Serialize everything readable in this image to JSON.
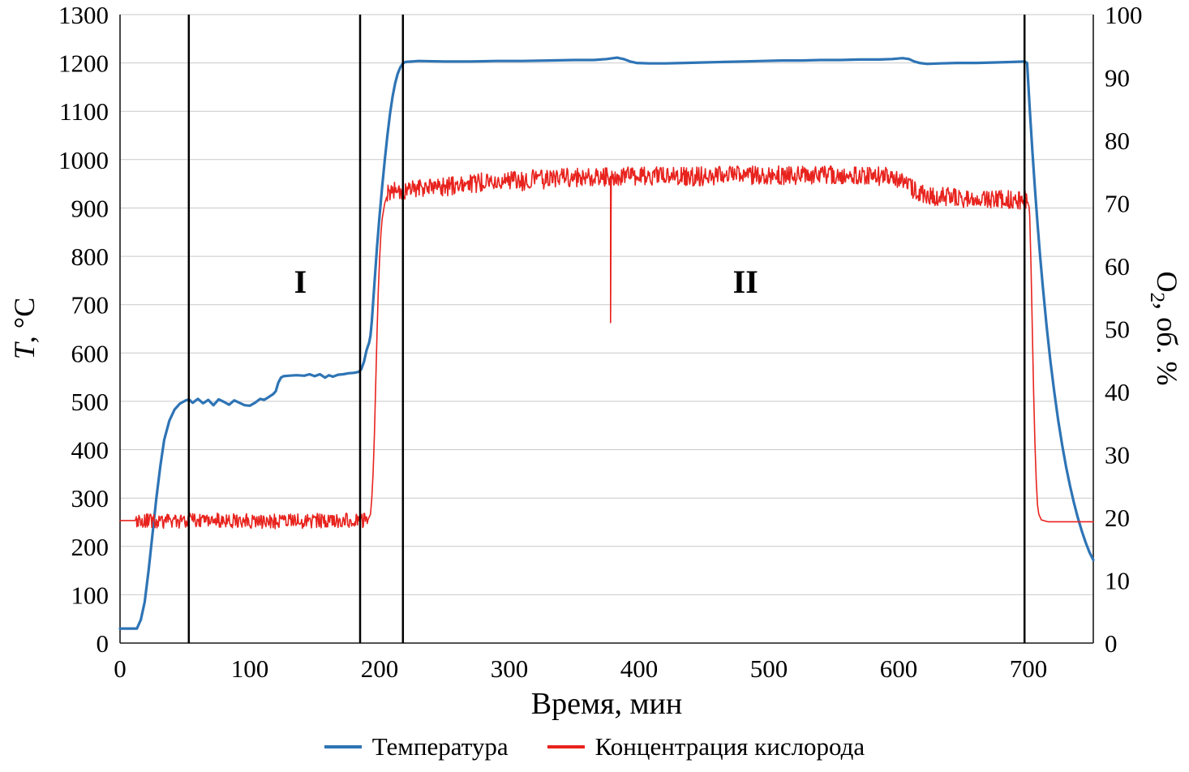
{
  "chart_data": {
    "type": "line",
    "title": "",
    "xlabel": "Время, мин",
    "ylabel_left": {
      "italic": "T",
      "rest": ", °C"
    },
    "ylabel_right": {
      "pre": "O",
      "sub": "2",
      "post": ", об. %"
    },
    "xlim": [
      0,
      750
    ],
    "ylim_left": [
      0,
      1300
    ],
    "ylim_right": [
      0,
      100
    ],
    "x_ticks": [
      0,
      100,
      200,
      300,
      400,
      500,
      600,
      700
    ],
    "y_ticks_left": [
      0,
      100,
      200,
      300,
      400,
      500,
      600,
      700,
      800,
      900,
      1000,
      1100,
      1200,
      1300
    ],
    "y_ticks_right": [
      0,
      10,
      20,
      30,
      40,
      50,
      60,
      70,
      80,
      90,
      100
    ],
    "grid": "horizontal",
    "legend_position": "bottom",
    "colors": {
      "grid": "#c9c9c9",
      "axis": "#1a1a1a",
      "divider": "#000000"
    },
    "stage_divider_lines_x": [
      53,
      185,
      218,
      697
    ],
    "region_labels": [
      {
        "text": "I",
        "x": 139,
        "y": 725
      },
      {
        "text": "II",
        "x": 482,
        "y": 725
      }
    ],
    "series": [
      {
        "id": "temperature-line",
        "name": "Температура",
        "axis": "left",
        "color": "#2e74b5",
        "width": 3.2,
        "points": [
          [
            0,
            30
          ],
          [
            13,
            30
          ],
          [
            16,
            48
          ],
          [
            19,
            85
          ],
          [
            22,
            150
          ],
          [
            25,
            225
          ],
          [
            28,
            300
          ],
          [
            31,
            365
          ],
          [
            34,
            420
          ],
          [
            38,
            460
          ],
          [
            42,
            483
          ],
          [
            46,
            495
          ],
          [
            50,
            501
          ],
          [
            53,
            504
          ],
          [
            56,
            497
          ],
          [
            60,
            505
          ],
          [
            64,
            496
          ],
          [
            68,
            503
          ],
          [
            72,
            492
          ],
          [
            76,
            504
          ],
          [
            80,
            499
          ],
          [
            84,
            493
          ],
          [
            88,
            502
          ],
          [
            92,
            497
          ],
          [
            96,
            492
          ],
          [
            100,
            491
          ],
          [
            104,
            497
          ],
          [
            108,
            505
          ],
          [
            111,
            503
          ],
          [
            114,
            508
          ],
          [
            118,
            515
          ],
          [
            120,
            521
          ],
          [
            122,
            539
          ],
          [
            124,
            549
          ],
          [
            126,
            552
          ],
          [
            130,
            553
          ],
          [
            136,
            554
          ],
          [
            142,
            553
          ],
          [
            146,
            556
          ],
          [
            150,
            552
          ],
          [
            154,
            556
          ],
          [
            158,
            549
          ],
          [
            161,
            554
          ],
          [
            164,
            551
          ],
          [
            168,
            555
          ],
          [
            172,
            556
          ],
          [
            176,
            558
          ],
          [
            180,
            559
          ],
          [
            184,
            561
          ],
          [
            186,
            567
          ],
          [
            188,
            582
          ],
          [
            190,
            606
          ],
          [
            192,
            622
          ],
          [
            193,
            636
          ],
          [
            194,
            665
          ],
          [
            196,
            742
          ],
          [
            198,
            818
          ],
          [
            200,
            884
          ],
          [
            202,
            944
          ],
          [
            204,
            999
          ],
          [
            206,
            1049
          ],
          [
            208,
            1094
          ],
          [
            210,
            1130
          ],
          [
            212,
            1158
          ],
          [
            214,
            1178
          ],
          [
            216,
            1191
          ],
          [
            218,
            1199
          ],
          [
            220,
            1202
          ],
          [
            230,
            1204
          ],
          [
            250,
            1203
          ],
          [
            270,
            1203
          ],
          [
            290,
            1204
          ],
          [
            310,
            1204
          ],
          [
            330,
            1205
          ],
          [
            350,
            1206
          ],
          [
            365,
            1206
          ],
          [
            375,
            1208
          ],
          [
            383,
            1211
          ],
          [
            388,
            1208
          ],
          [
            393,
            1203
          ],
          [
            398,
            1200
          ],
          [
            408,
            1199
          ],
          [
            420,
            1199
          ],
          [
            435,
            1200
          ],
          [
            450,
            1201
          ],
          [
            465,
            1202
          ],
          [
            480,
            1203
          ],
          [
            495,
            1204
          ],
          [
            510,
            1205
          ],
          [
            525,
            1205
          ],
          [
            540,
            1206
          ],
          [
            555,
            1206
          ],
          [
            570,
            1207
          ],
          [
            585,
            1207
          ],
          [
            595,
            1208
          ],
          [
            603,
            1210
          ],
          [
            608,
            1208
          ],
          [
            612,
            1203
          ],
          [
            616,
            1200
          ],
          [
            622,
            1198
          ],
          [
            632,
            1199
          ],
          [
            645,
            1200
          ],
          [
            660,
            1200
          ],
          [
            675,
            1201
          ],
          [
            688,
            1202
          ],
          [
            697,
            1203
          ],
          [
            699,
            1200
          ],
          [
            701,
            1106
          ],
          [
            703,
            1020
          ],
          [
            705,
            941
          ],
          [
            707,
            868
          ],
          [
            709,
            801
          ],
          [
            711,
            740
          ],
          [
            714,
            656
          ],
          [
            717,
            582
          ],
          [
            720,
            518
          ],
          [
            723,
            460
          ],
          [
            726,
            410
          ],
          [
            729,
            365
          ],
          [
            732,
            326
          ],
          [
            735,
            291
          ],
          [
            738,
            260
          ],
          [
            741,
            233
          ],
          [
            744,
            209
          ],
          [
            747,
            188
          ],
          [
            750,
            172
          ]
        ]
      },
      {
        "id": "oxygen-line",
        "name": "Концентрация кислорода",
        "axis": "right",
        "color": "#e8231e",
        "width": 1.6,
        "step": 0.5,
        "noise": [
          {
            "x0": 12,
            "x1": 191,
            "amp": 1.2
          },
          {
            "x0": 206,
            "x1": 700,
            "amp": 1.5
          }
        ],
        "spikes": [
          {
            "x": 378,
            "y": 51
          }
        ],
        "points": [
          [
            0,
            19.5
          ],
          [
            12,
            19.5
          ],
          [
            40,
            19.4
          ],
          [
            80,
            19.5
          ],
          [
            120,
            19.3
          ],
          [
            160,
            19.5
          ],
          [
            191,
            19.6
          ],
          [
            193,
            20.5
          ],
          [
            194,
            23
          ],
          [
            195,
            27
          ],
          [
            196,
            33
          ],
          [
            197,
            41
          ],
          [
            198,
            49
          ],
          [
            199,
            56
          ],
          [
            200,
            61
          ],
          [
            201,
            65
          ],
          [
            202,
            67.5
          ],
          [
            204,
            70
          ],
          [
            206,
            71.3
          ],
          [
            208,
            71.8
          ],
          [
            212,
            72
          ],
          [
            216,
            71.6
          ],
          [
            220,
            72
          ],
          [
            230,
            72.2
          ],
          [
            240,
            72.4
          ],
          [
            250,
            72.5
          ],
          [
            260,
            72.9
          ],
          [
            270,
            73
          ],
          [
            280,
            73.4
          ],
          [
            290,
            73.2
          ],
          [
            300,
            73.7
          ],
          [
            310,
            73.4
          ],
          [
            320,
            73.9
          ],
          [
            330,
            73.7
          ],
          [
            340,
            74
          ],
          [
            350,
            74.1
          ],
          [
            360,
            74
          ],
          [
            370,
            74.2
          ],
          [
            380,
            74.2
          ],
          [
            390,
            74.4
          ],
          [
            400,
            74.2
          ],
          [
            420,
            74.4
          ],
          [
            440,
            74.2
          ],
          [
            460,
            74.4
          ],
          [
            480,
            74.4
          ],
          [
            500,
            74.5
          ],
          [
            520,
            74.4
          ],
          [
            540,
            74.5
          ],
          [
            560,
            74.4
          ],
          [
            580,
            74.3
          ],
          [
            595,
            74.2
          ],
          [
            600,
            73.9
          ],
          [
            605,
            73.4
          ],
          [
            610,
            72.4
          ],
          [
            615,
            71.7
          ],
          [
            620,
            71.2
          ],
          [
            630,
            71
          ],
          [
            640,
            71
          ],
          [
            650,
            70.8
          ],
          [
            660,
            70.8
          ],
          [
            670,
            70.5
          ],
          [
            680,
            70.6
          ],
          [
            690,
            70.4
          ],
          [
            697,
            70.5
          ],
          [
            700,
            70.8
          ],
          [
            701,
            68
          ],
          [
            702,
            60
          ],
          [
            703,
            50
          ],
          [
            704,
            40
          ],
          [
            705,
            32
          ],
          [
            706,
            26
          ],
          [
            707,
            22
          ],
          [
            708,
            20.5
          ],
          [
            710,
            19.6
          ],
          [
            715,
            19.3
          ],
          [
            750,
            19.3
          ]
        ]
      }
    ]
  }
}
